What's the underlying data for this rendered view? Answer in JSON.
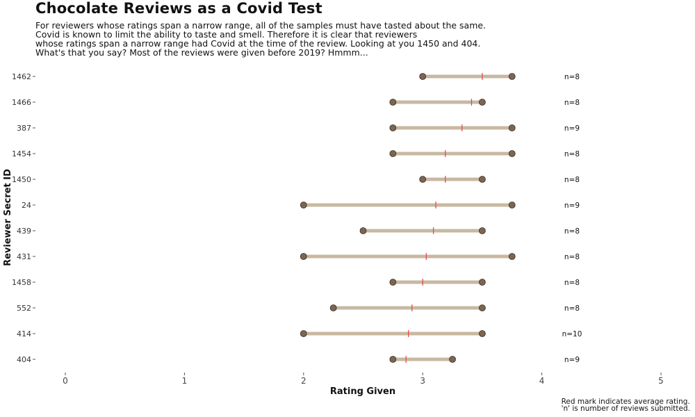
{
  "chart_data": {
    "type": "dumbbell",
    "title": "Chocolate Reviews as a Covid Test",
    "subtitle_lines": [
      "For reviewers whose ratings span a narrow range, all of the samples must have tasted about the same.",
      "Covid is known to limit the ability to taste and smell.  Therefore it is clear that reviewers",
      "whose ratings span a narrow range had Covid at the time of the review.  Looking at you 1450 and 404.",
      "What's that you say?  Most of the reviews were given before 2019?  Hmmm..."
    ],
    "xlabel": "Rating Given",
    "ylabel": "Reviewer Secret ID",
    "xlim": [
      0,
      5
    ],
    "x_ticks": [
      0,
      1,
      2,
      3,
      4,
      5
    ],
    "caption_lines": [
      "Red mark indicates average rating.",
      "'n' is number of reviews submitted."
    ],
    "colors": {
      "segment": "#c8b8a2",
      "point": "#7b6553",
      "point_edge": "#3a2c22",
      "mean_mark": "#e8433a"
    },
    "rows": [
      {
        "id": "1462",
        "min": 3.0,
        "max": 3.75,
        "mean": 3.5,
        "n": "n=8"
      },
      {
        "id": "1466",
        "min": 2.75,
        "max": 3.5,
        "mean": 3.41,
        "n": "n=8"
      },
      {
        "id": "387",
        "min": 2.75,
        "max": 3.75,
        "mean": 3.33,
        "n": "n=9"
      },
      {
        "id": "1454",
        "min": 2.75,
        "max": 3.75,
        "mean": 3.19,
        "n": "n=8"
      },
      {
        "id": "1450",
        "min": 3.0,
        "max": 3.5,
        "mean": 3.19,
        "n": "n=8"
      },
      {
        "id": "24",
        "min": 2.0,
        "max": 3.75,
        "mean": 3.11,
        "n": "n=9"
      },
      {
        "id": "439",
        "min": 2.5,
        "max": 3.5,
        "mean": 3.09,
        "n": "n=8"
      },
      {
        "id": "431",
        "min": 2.0,
        "max": 3.75,
        "mean": 3.03,
        "n": "n=8"
      },
      {
        "id": "1458",
        "min": 2.75,
        "max": 3.5,
        "mean": 3.0,
        "n": "n=8"
      },
      {
        "id": "552",
        "min": 2.25,
        "max": 3.5,
        "mean": 2.91,
        "n": "n=8"
      },
      {
        "id": "414",
        "min": 2.0,
        "max": 3.5,
        "mean": 2.88,
        "n": "n=10"
      },
      {
        "id": "404",
        "min": 2.75,
        "max": 3.25,
        "mean": 2.86,
        "n": "n=9"
      }
    ]
  }
}
